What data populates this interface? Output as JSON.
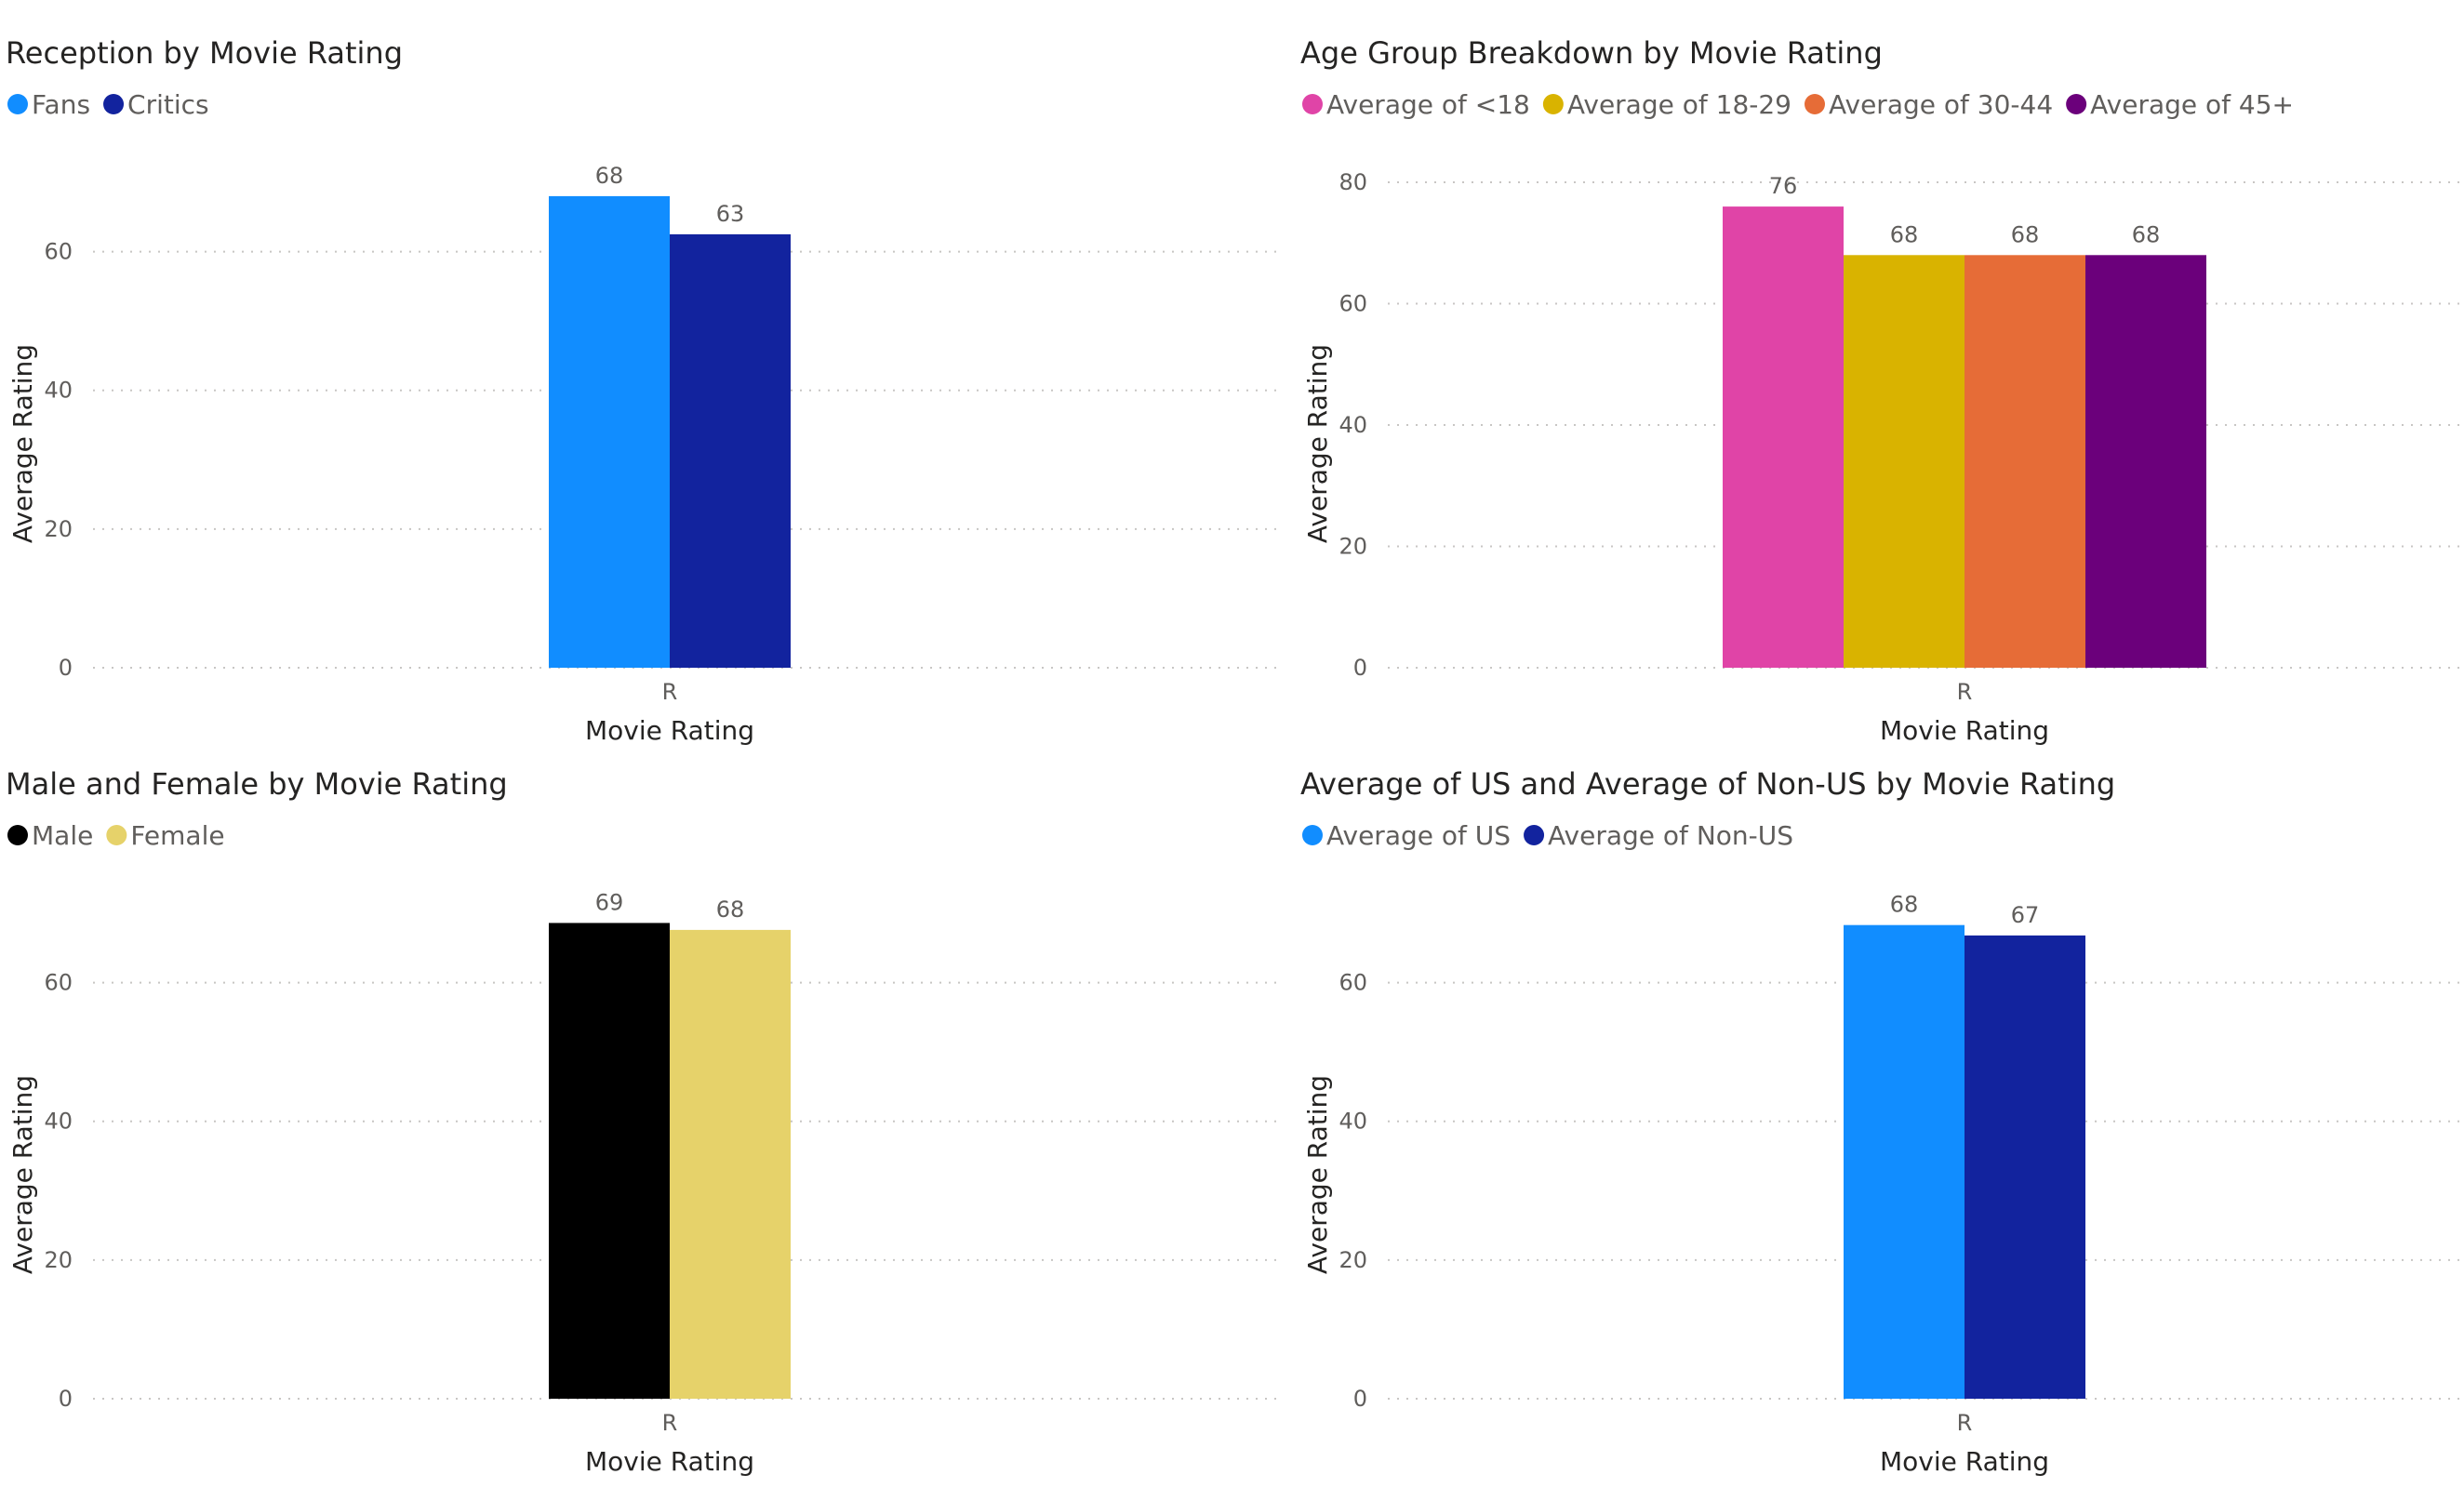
{
  "chart_data": [
    {
      "type": "bar",
      "title": "Reception by Movie Rating",
      "categories": [
        "R"
      ],
      "series": [
        {
          "name": "Fans",
          "values": [
            68
          ],
          "label": "68",
          "color": "#118DFF"
        },
        {
          "name": "Critics",
          "values": [
            62.5
          ],
          "label": "63",
          "color": "#12239E"
        }
      ],
      "xlabel": "Movie Rating",
      "ylabel": "Average Rating",
      "ylim": [
        0,
        70
      ],
      "yticks": [
        "0",
        "20",
        "40",
        "60"
      ],
      "legend_position": "top-left",
      "grid": true
    },
    {
      "type": "bar",
      "title": "Age Group Breakdown by Movie Rating",
      "categories": [
        "R"
      ],
      "series": [
        {
          "name": "Average of <18",
          "values": [
            76
          ],
          "label": "76",
          "color": "#E044A7"
        },
        {
          "name": "Average of 18-29",
          "values": [
            68
          ],
          "label": "68",
          "color": "#D9B300"
        },
        {
          "name": "Average of 30-44",
          "values": [
            68
          ],
          "label": "68",
          "color": "#E66C37"
        },
        {
          "name": "Average of 45+",
          "values": [
            68
          ],
          "label": "68",
          "color": "#6B007B"
        }
      ],
      "xlabel": "Movie Rating",
      "ylabel": "Average Rating",
      "ylim": [
        0,
        80
      ],
      "yticks": [
        "0",
        "20",
        "40",
        "60",
        "80"
      ],
      "legend_position": "top-left",
      "grid": true
    },
    {
      "type": "bar",
      "title": "Male and Female by Movie Rating",
      "categories": [
        "R"
      ],
      "series": [
        {
          "name": "Male",
          "values": [
            68.6
          ],
          "label": "69",
          "color": "#000000"
        },
        {
          "name": "Female",
          "values": [
            67.6
          ],
          "label": "68",
          "color": "#E6D26A"
        }
      ],
      "xlabel": "Movie Rating",
      "ylabel": "Average Rating",
      "ylim": [
        0,
        70
      ],
      "yticks": [
        "0",
        "20",
        "40",
        "60"
      ],
      "legend_position": "top-left",
      "grid": true
    },
    {
      "type": "bar",
      "title": "Average of US and Average of Non-US by Movie Rating",
      "categories": [
        "R"
      ],
      "series": [
        {
          "name": "Average of US",
          "values": [
            68.3
          ],
          "label": "68",
          "color": "#118DFF"
        },
        {
          "name": "Average of Non-US",
          "values": [
            66.8
          ],
          "label": "67",
          "color": "#12239E"
        }
      ],
      "xlabel": "Movie Rating",
      "ylabel": "Average Rating",
      "ylim": [
        0,
        70
      ],
      "yticks": [
        "0",
        "20",
        "40",
        "60"
      ],
      "legend_position": "top-left",
      "grid": true
    }
  ]
}
